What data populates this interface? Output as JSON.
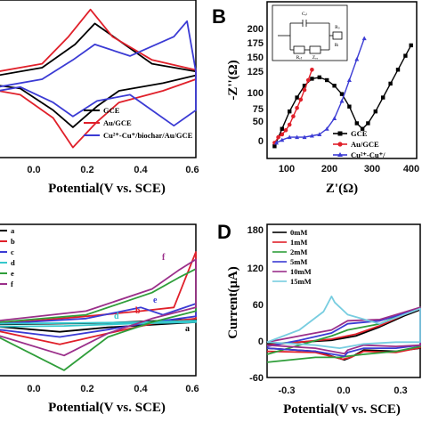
{
  "panels": {
    "A": {
      "xlabel": "Potential(V vs. SCE)",
      "xticks": [
        "0.0",
        "0.2",
        "0.4",
        "0.6"
      ],
      "legend": [
        "GCE",
        "Au/GCE",
        "Cu²⁺-Cu⁺/biochar/Au/GCE"
      ]
    },
    "B": {
      "label": "B",
      "xlabel": "Z'(Ω)",
      "ylabel": "-Z''(Ω)",
      "xticks": [
        "100",
        "200",
        "300",
        "400"
      ],
      "yticks": [
        "0",
        "25",
        "50",
        "75",
        "100",
        "125",
        "150",
        "175",
        "200"
      ],
      "legend": [
        "GCE",
        "Au/GCE",
        "Cu²⁺-Cu⁺/"
      ],
      "inset": [
        "Cₑₗ",
        "Rₛ",
        "Rₑₜ",
        "Zᵥᵥ",
        "Rₗ"
      ]
    },
    "C": {
      "xlabel": "Potential(V vs. SCE)",
      "xticks": [
        "0.0",
        "0.2",
        "0.4",
        "0.6"
      ],
      "legend": [
        "a",
        "b",
        "c",
        "d",
        "e",
        "f"
      ],
      "annotations": [
        "f",
        "e",
        "d",
        "b",
        "c",
        "a"
      ]
    },
    "D": {
      "label": "D",
      "xlabel": "Potential(V vs. SCE)",
      "ylabel": "Current(μA)",
      "xticks": [
        "-0.3",
        "0.0",
        "0.3"
      ],
      "yticks": [
        "-60",
        "0",
        "60",
        "120",
        "180"
      ],
      "legend": [
        "0mM",
        "1mM",
        "2mM",
        "5mM",
        "10mM",
        "15mM"
      ]
    }
  },
  "chart_data": [
    {
      "panel": "A",
      "type": "line",
      "xlabel": "Potential(V vs. SCE)",
      "xlim": [
        -0.2,
        0.7
      ],
      "ylim": [
        -1,
        1
      ],
      "series": [
        {
          "name": "GCE",
          "color": "#000000",
          "x": [
            -0.2,
            0.0,
            0.15,
            0.24,
            0.35,
            0.5,
            0.7,
            0.7,
            0.55,
            0.35,
            0.25,
            0.14,
            0.05,
            -0.1,
            -0.2
          ],
          "y": [
            0.05,
            0.15,
            0.45,
            0.72,
            0.5,
            0.2,
            0.1,
            0.05,
            -0.05,
            -0.15,
            -0.35,
            -0.62,
            -0.4,
            -0.12,
            -0.08
          ]
        },
        {
          "name": "Au/GCE",
          "color": "#e0202a",
          "x": [
            -0.2,
            0.0,
            0.12,
            0.22,
            0.32,
            0.5,
            0.7,
            0.7,
            0.55,
            0.35,
            0.25,
            0.14,
            0.05,
            -0.1,
            -0.2
          ],
          "y": [
            0.1,
            0.2,
            0.55,
            0.9,
            0.55,
            0.25,
            0.12,
            0.0,
            -0.15,
            -0.3,
            -0.55,
            -0.88,
            -0.5,
            -0.2,
            -0.15
          ]
        },
        {
          "name": "Cu²⁺-Cu⁺/biochar/Au/GCE",
          "color": "#3b3bd4",
          "x": [
            -0.2,
            0.0,
            0.14,
            0.24,
            0.4,
            0.6,
            0.66,
            0.7,
            0.7,
            0.6,
            0.4,
            0.25,
            0.14,
            0.05,
            -0.1,
            -0.2
          ],
          "y": [
            -0.1,
            0.0,
            0.25,
            0.45,
            0.3,
            0.55,
            0.75,
            0.1,
            -0.4,
            -0.6,
            -0.2,
            -0.28,
            -0.48,
            -0.3,
            -0.1,
            -0.15
          ]
        }
      ]
    },
    {
      "panel": "B",
      "type": "scatter",
      "xlabel": "Z'(Ω)",
      "ylabel": "-Z''(Ω)",
      "xlim": [
        60,
        460
      ],
      "ylim": [
        -10,
        210
      ],
      "series": [
        {
          "name": "GCE",
          "color": "#000000",
          "x": [
            80,
            100,
            120,
            140,
            160,
            180,
            200,
            220,
            240,
            260,
            280,
            300,
            315,
            330,
            350,
            370,
            390,
            410,
            430,
            445
          ],
          "y": [
            5,
            30,
            55,
            75,
            92,
            102,
            104,
            100,
            92,
            80,
            62,
            38,
            30,
            38,
            55,
            75,
            95,
            115,
            135,
            150
          ]
        },
        {
          "name": "Au/GCE",
          "color": "#e0202a",
          "x": [
            80,
            90,
            100,
            110,
            120,
            130,
            140,
            150,
            160,
            170,
            180
          ],
          "y": [
            10,
            18,
            22,
            28,
            36,
            48,
            60,
            72,
            86,
            100,
            115
          ]
        },
        {
          "name": "Cu²⁺-Cu⁺/",
          "color": "#3b3bd4",
          "x": [
            85,
            100,
            120,
            140,
            160,
            180,
            200,
            220,
            240,
            260,
            280,
            300,
            320
          ],
          "y": [
            10,
            14,
            18,
            18,
            18,
            20,
            22,
            30,
            45,
            70,
            100,
            130,
            160
          ]
        }
      ]
    },
    {
      "panel": "C",
      "type": "line",
      "xlabel": "Potential(V vs. SCE)",
      "xlim": [
        -0.2,
        0.7
      ],
      "ylim": [
        -1,
        1
      ],
      "series": [
        {
          "name": "a",
          "color": "#000000",
          "x": [
            -0.2,
            0.3,
            0.7,
            0.7,
            0.3,
            0.08,
            -0.2
          ],
          "y": [
            -0.33,
            -0.31,
            -0.26,
            -0.3,
            -0.37,
            -0.43,
            -0.36
          ]
        },
        {
          "name": "b",
          "color": "#e0202a",
          "x": [
            -0.2,
            0.2,
            0.45,
            0.6,
            0.7,
            0.7,
            0.5,
            0.3,
            0.08,
            -0.2
          ],
          "y": [
            -0.32,
            -0.22,
            -0.15,
            -0.1,
            0.65,
            -0.25,
            -0.32,
            -0.45,
            -0.6,
            -0.42
          ]
        },
        {
          "name": "c",
          "color": "#3b3bd4",
          "x": [
            -0.2,
            0.2,
            0.45,
            0.55,
            0.7,
            0.7,
            0.5,
            0.3,
            0.08,
            -0.2
          ],
          "y": [
            -0.32,
            -0.25,
            -0.1,
            -0.2,
            -0.05,
            -0.22,
            -0.3,
            -0.4,
            -0.5,
            -0.4
          ]
        },
        {
          "name": "d",
          "color": "#35c8cc",
          "x": [
            -0.2,
            0.2,
            0.45,
            0.7,
            0.7,
            0.4,
            0.1,
            -0.2
          ],
          "y": [
            -0.32,
            -0.31,
            -0.3,
            -0.28,
            -0.3,
            -0.32,
            -0.35,
            -0.36
          ]
        },
        {
          "name": "e",
          "color": "#2f9e3a",
          "x": [
            -0.2,
            0.2,
            0.5,
            0.62,
            0.7,
            0.7,
            0.5,
            0.3,
            0.1,
            -0.2
          ],
          "y": [
            -0.3,
            -0.2,
            0.1,
            0.3,
            0.42,
            -0.15,
            -0.3,
            -0.5,
            -0.95,
            -0.5
          ]
        },
        {
          "name": "f",
          "color": "#9b2f8a",
          "x": [
            -0.2,
            0.2,
            0.5,
            0.62,
            0.7,
            0.7,
            0.5,
            0.3,
            0.1,
            -0.2
          ],
          "y": [
            -0.28,
            -0.15,
            0.15,
            0.4,
            0.55,
            -0.1,
            -0.25,
            -0.45,
            -0.75,
            -0.48
          ]
        }
      ]
    },
    {
      "panel": "D",
      "type": "line",
      "xlabel": "Potential(V vs. SCE)",
      "ylabel": "Current(μA)",
      "xlim": [
        -0.4,
        0.55
      ],
      "ylim": [
        -60,
        185
      ],
      "series": [
        {
          "name": "0mM",
          "color": "#000000",
          "x": [
            -0.4,
            -0.2,
            0.0,
            0.15,
            0.3,
            0.45,
            0.55,
            0.55,
            0.4,
            0.2,
            0.12,
            0.08,
            -0.1,
            -0.4
          ],
          "y": [
            -8,
            -5,
            -2,
            5,
            20,
            38,
            48,
            -15,
            -20,
            -18,
            -30,
            -34,
            -20,
            -15
          ]
        },
        {
          "name": "1mM",
          "color": "#e0202a",
          "x": [
            -0.4,
            -0.2,
            0.0,
            0.15,
            0.3,
            0.45,
            0.55,
            0.55,
            0.4,
            0.2,
            0.12,
            0.07,
            -0.1,
            -0.4
          ],
          "y": [
            -10,
            -5,
            0,
            8,
            22,
            40,
            50,
            -14,
            -22,
            -20,
            -30,
            -33,
            -22,
            -20
          ]
        },
        {
          "name": "2mM",
          "color": "#2f9e3a",
          "x": [
            -0.4,
            -0.2,
            0.0,
            0.1,
            0.3,
            0.45,
            0.55,
            0.55,
            0.4,
            0.2,
            0.1,
            0.05,
            -0.1,
            -0.4
          ],
          "y": [
            -25,
            -10,
            5,
            15,
            25,
            42,
            52,
            -12,
            -20,
            -25,
            -28,
            -30,
            -30,
            -38
          ]
        },
        {
          "name": "5mM",
          "color": "#3b3bd4",
          "x": [
            -0.4,
            -0.2,
            0.0,
            0.1,
            0.3,
            0.45,
            0.55,
            0.55,
            0.4,
            0.2,
            0.1,
            0.08,
            -0.1,
            -0.4
          ],
          "y": [
            -12,
            -2,
            10,
            25,
            30,
            42,
            50,
            -10,
            -15,
            -15,
            -22,
            -28,
            -20,
            -15
          ]
        },
        {
          "name": "10mM",
          "color": "#9b2f8a",
          "x": [
            -0.4,
            -0.2,
            0.0,
            0.1,
            0.3,
            0.45,
            0.55,
            0.55,
            0.4,
            0.2,
            0.1,
            0.08,
            -0.1,
            -0.4
          ],
          "y": [
            -5,
            5,
            15,
            30,
            32,
            44,
            52,
            -10,
            -12,
            -10,
            -18,
            -24,
            -15,
            -10
          ]
        },
        {
          "name": "15mM",
          "color": "#78cde0",
          "x": [
            -0.4,
            -0.2,
            -0.05,
            0.0,
            0.02,
            0.1,
            0.3,
            0.45,
            0.55,
            0.55,
            0.4,
            0.2,
            0.05,
            -0.1,
            -0.4
          ],
          "y": [
            -5,
            15,
            45,
            70,
            60,
            40,
            25,
            40,
            50,
            -5,
            -5,
            -8,
            -15,
            -10,
            -5
          ]
        }
      ]
    }
  ]
}
